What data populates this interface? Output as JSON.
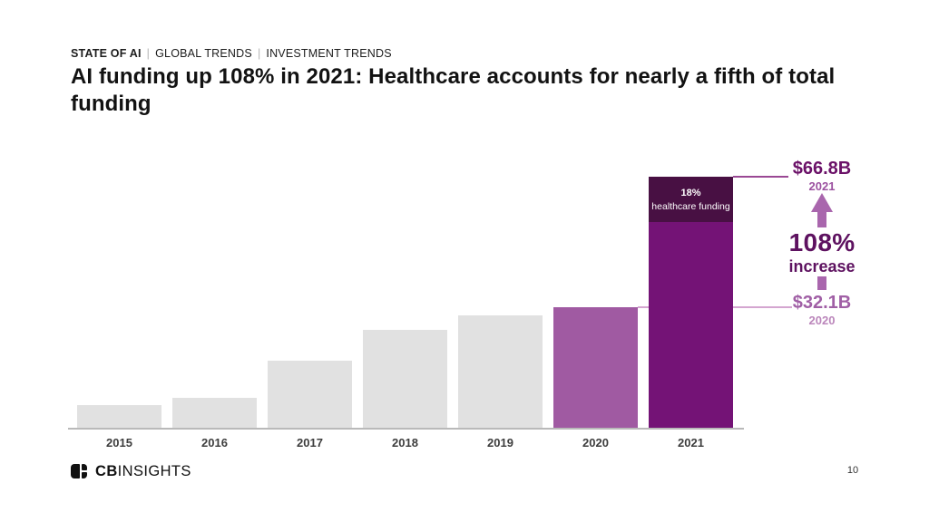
{
  "eyebrow": {
    "primary": "STATE OF AI",
    "separator": "|",
    "secondary_1": "GLOBAL TRENDS",
    "secondary_2": "INVESTMENT TRENDS"
  },
  "title": {
    "full": "AI funding up 108% in 2021: Healthcare accounts for nearly a fifth of total funding",
    "lines": [
      "AI funding up 108% in 2021: Healthcare accounts for nearly a fifth of total",
      "funding"
    ]
  },
  "chart_data": {
    "type": "bar",
    "categories": [
      "2015",
      "2016",
      "2017",
      "2018",
      "2019",
      "2020",
      "2021"
    ],
    "values": [
      6.0,
      8.0,
      17.9,
      26.1,
      29.9,
      32.1,
      66.8
    ],
    "unit": "$B",
    "ylim": [
      0,
      70
    ],
    "grid": false,
    "xlabel": "",
    "ylabel": "",
    "segment_2021": {
      "fraction": 0.18,
      "line1": "18%",
      "line2": "healthcare funding"
    },
    "annotations": {
      "top_value": "$66.8B",
      "top_year": "2021",
      "increase_value": "108%",
      "increase_label": "increase",
      "bottom_value": "$32.1B",
      "bottom_year": "2020"
    },
    "colors": {
      "bar_default": "#e1e1e1",
      "bar_2020": "#a05aa2",
      "bar_2021": "#741376",
      "bar_2021_segment": "#481043",
      "annotation_dark": "#6b1168",
      "annotation_mid": "#9c51a0",
      "annotation_light": "#bb86bb",
      "increase_text": "#5e1260",
      "arrow": "#a966ad",
      "callout_line_dark": "#9a4894",
      "callout_line_light": "#d4a6d0",
      "axis_line": "#b9b9b9"
    }
  },
  "footer": {
    "logo_bold": "CB",
    "logo_regular": "INSIGHTS",
    "page_number": "10"
  }
}
